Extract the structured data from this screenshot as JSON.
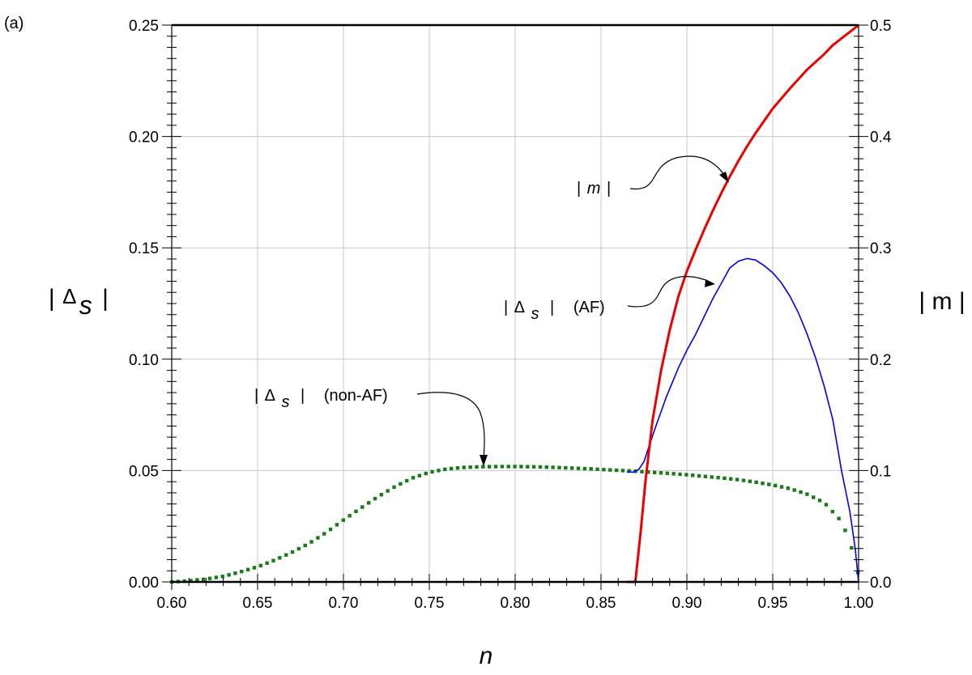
{
  "panel_label": "(a)",
  "chart_data": {
    "type": "line",
    "xlabel": "n",
    "ylabel": "| Δ s |",
    "ylabel_parts": {
      "open": "|",
      "delta": "Δ",
      "sub": "s",
      "close": "|"
    },
    "y2label": "| m |",
    "xlim": [
      0.6,
      1.0
    ],
    "ylim": [
      0,
      0.25
    ],
    "y2lim": [
      0,
      0.5
    ],
    "grid": true,
    "x_ticks": [
      "0.60",
      "0.65",
      "0.70",
      "0.75",
      "0.80",
      "0.85",
      "0.90",
      "0.95",
      "1.00"
    ],
    "y_ticks": [
      "0.00",
      "0.05",
      "0.10",
      "0.15",
      "0.20",
      "0.25"
    ],
    "y2_ticks": [
      "0.0",
      "0.1",
      "0.2",
      "0.3",
      "0.4",
      "0.5"
    ],
    "colors": {
      "non_af": "#1a7a1a",
      "af": "#0000ee",
      "m": "#ee0000",
      "grid": "#c8c8c8"
    },
    "series": [
      {
        "axis": "left",
        "style": "dotted",
        "x": [
          0.6,
          0.61,
          0.62,
          0.63,
          0.64,
          0.65,
          0.66,
          0.67,
          0.68,
          0.69,
          0.7,
          0.71,
          0.72,
          0.73,
          0.74,
          0.75,
          0.76,
          0.77,
          0.78,
          0.79,
          0.8,
          0.81,
          0.82,
          0.83,
          0.84,
          0.85,
          0.86,
          0.87,
          0.88,
          0.89,
          0.9,
          0.91,
          0.92,
          0.93,
          0.94,
          0.95,
          0.96,
          0.97,
          0.98,
          0.99,
          0.995,
          1.0
        ],
        "y": [
          0.0,
          0.0005,
          0.0013,
          0.0025,
          0.0045,
          0.0068,
          0.0098,
          0.0133,
          0.0173,
          0.0222,
          0.0278,
          0.0331,
          0.0382,
          0.0428,
          0.0466,
          0.0492,
          0.0507,
          0.0514,
          0.0517,
          0.0518,
          0.0518,
          0.0517,
          0.0515,
          0.0512,
          0.0509,
          0.0505,
          0.0501,
          0.0497,
          0.0492,
          0.0487,
          0.0481,
          0.0474,
          0.0467,
          0.0459,
          0.0448,
          0.0435,
          0.0419,
          0.0394,
          0.0356,
          0.0272,
          0.018,
          0.003
        ]
      },
      {
        "axis": "left",
        "style": "solid",
        "x": [
          0.865,
          0.869,
          0.872,
          0.875,
          0.878,
          0.882,
          0.888,
          0.895,
          0.9,
          0.905,
          0.91,
          0.915,
          0.92,
          0.925,
          0.93,
          0.935,
          0.94,
          0.945,
          0.95,
          0.955,
          0.96,
          0.965,
          0.97,
          0.975,
          0.98,
          0.985,
          0.99,
          0.995,
          0.998,
          1.0
        ],
        "y": [
          0.0493,
          0.0493,
          0.0505,
          0.054,
          0.061,
          0.07,
          0.083,
          0.096,
          0.104,
          0.111,
          0.119,
          0.127,
          0.134,
          0.141,
          0.144,
          0.1452,
          0.1445,
          0.142,
          0.1388,
          0.1343,
          0.1283,
          0.1207,
          0.1113,
          0.1005,
          0.0878,
          0.0728,
          0.0502,
          0.0312,
          0.015,
          0.0
        ]
      },
      {
        "axis": "right",
        "style": "solid",
        "x": [
          0.865,
          0.87,
          0.873,
          0.876,
          0.88,
          0.885,
          0.89,
          0.895,
          0.9,
          0.905,
          0.91,
          0.915,
          0.92,
          0.925,
          0.93,
          0.935,
          0.94,
          0.95,
          0.96,
          0.97,
          0.98,
          0.985,
          0.99,
          0.995,
          1.0
        ],
        "y": [
          0.0,
          0.0,
          0.044,
          0.092,
          0.145,
          0.19,
          0.226,
          0.256,
          0.279,
          0.298,
          0.316,
          0.333,
          0.349,
          0.364,
          0.378,
          0.391,
          0.403,
          0.425,
          0.443,
          0.46,
          0.474,
          0.482,
          0.488,
          0.494,
          0.5
        ]
      }
    ],
    "annotations": [
      {
        "parts": {
          "open": "|",
          "sym": "m",
          "close": "|"
        }
      },
      {
        "parts": {
          "open": "|",
          "delta": "Δ",
          "sub": "s",
          "close": "|",
          "tag": "(AF)"
        }
      },
      {
        "parts": {
          "open": "|",
          "delta": "Δ",
          "sub": "s",
          "close": "|",
          "tag": "(non-AF)"
        }
      }
    ]
  }
}
